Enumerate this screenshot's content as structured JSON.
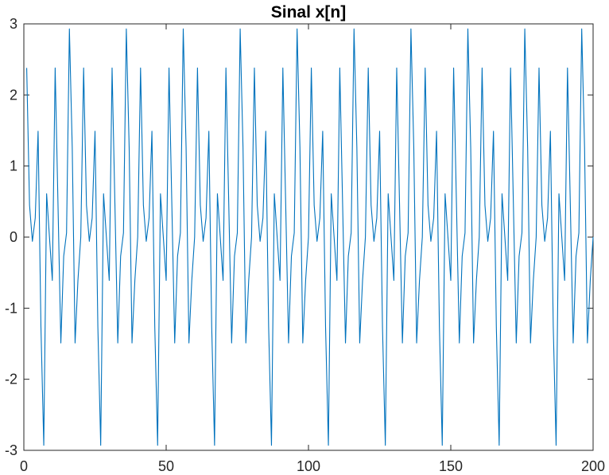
{
  "chart_data": {
    "type": "line",
    "title": "Sinal x[n]",
    "xlabel": "",
    "ylabel": "",
    "xlim": [
      0,
      200
    ],
    "ylim": [
      -3,
      3
    ],
    "x_ticks": [
      0,
      50,
      100,
      150,
      200
    ],
    "y_ticks": [
      -3,
      -2,
      -1,
      0,
      1,
      2,
      3
    ],
    "x_tick_labels": [
      "0",
      "50",
      "100",
      "150",
      "200"
    ],
    "y_tick_labels": [
      "-3",
      "-2",
      "-1",
      "0",
      "1",
      "2",
      "3"
    ],
    "grid": false,
    "box": true,
    "series": [
      {
        "color": "#0072BD",
        "x_start": 1,
        "x_step": 1,
        "period": 20,
        "period_values": [
          2.38,
          0.45,
          -0.06,
          0.27,
          1.49,
          -1.26,
          -2.93,
          0.61,
          0.0,
          -0.61,
          2.38,
          0.45,
          -1.49,
          -0.27,
          0.06,
          2.93,
          1.26,
          -1.49,
          -0.61,
          0.0
        ],
        "count": 200
      }
    ]
  }
}
